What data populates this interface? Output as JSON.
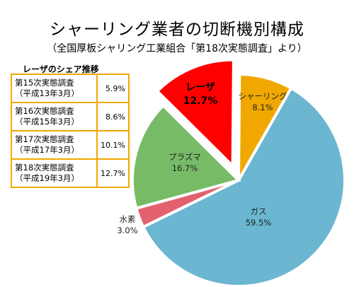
{
  "title": "シャーリング業者の切断機別構成",
  "subtitle": "（全国厚板シャリング工業組合「第18次実態調査」より）",
  "share_table": {
    "heading": "レーザのシェア推移",
    "rows": [
      {
        "survey": "第15次実態調査",
        "date": "（平成13年3月）",
        "share": "5.9%"
      },
      {
        "survey": "第16次実態調査",
        "date": "（平成15年3月）",
        "share": "8.6%"
      },
      {
        "survey": "第17次実態調査",
        "date": "（平成17年3月）",
        "share": "10.1%"
      },
      {
        "survey": "第18次実態調査",
        "date": "（平成19年3月）",
        "share": "12.7%"
      }
    ]
  },
  "chart_data": {
    "type": "pie",
    "title": "シャーリング業者の切断機別構成",
    "slices": [
      {
        "name": "シャーリング",
        "value": 8.1,
        "label": "8.1%",
        "color": "#f0a800",
        "exploded": false
      },
      {
        "name": "ガス",
        "value": 59.5,
        "label": "59.5%",
        "color": "#6bb6d1",
        "exploded": false
      },
      {
        "name": "水素",
        "value": 3.0,
        "label": "3.0%",
        "color": "#e3616f",
        "exploded": false
      },
      {
        "name": "プラズマ",
        "value": 16.7,
        "label": "16.7%",
        "color": "#77bb66",
        "exploded": false
      },
      {
        "name": "レーザ",
        "value": 12.7,
        "label": "12.7%",
        "color": "#ff0000",
        "exploded": true
      }
    ]
  }
}
